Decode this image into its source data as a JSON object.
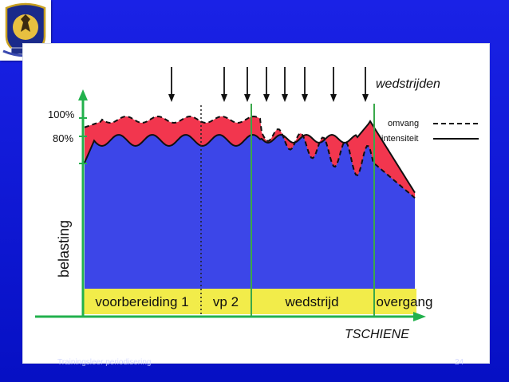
{
  "colors": {
    "slide_background": "#0a14d8",
    "volume_fill": "#f2364e",
    "intensity_fill": "#3c46e8",
    "phase_band": "#f2ec4a",
    "axis_green": "#22b14c",
    "separator": "#3aa84a"
  },
  "logo": {
    "icon": "club-crest-icon"
  },
  "diagram": {
    "author": "TSCHIENE",
    "y_axis_label": "belasting",
    "y_ticks": [
      "100%",
      "80%"
    ],
    "competitions_label": "wedstrijden",
    "legend": [
      {
        "label": "omvang",
        "line_style": "dashed"
      },
      {
        "label": "intensiteit",
        "line_style": "solid"
      }
    ],
    "phases": [
      "voorbereiding 1",
      "vp 2",
      "wedstrijd",
      "overgang"
    ]
  },
  "footer": {
    "text": "Trainingsleer periodisering",
    "page": "24"
  }
}
